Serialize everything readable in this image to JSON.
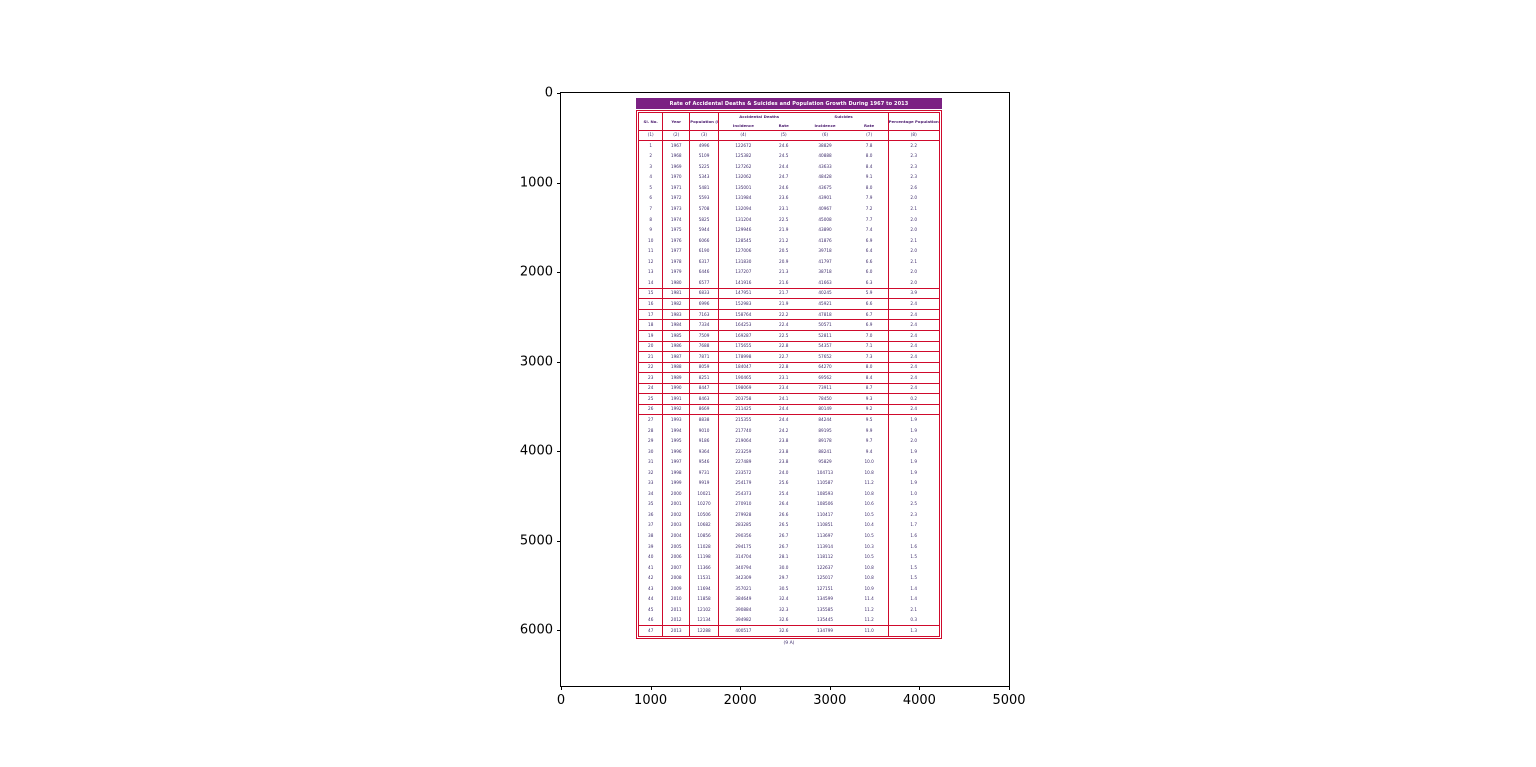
{
  "axes": {
    "x_ticks": [
      "0",
      "1000",
      "2000",
      "3000",
      "4000",
      "5000"
    ],
    "y_ticks": [
      "0",
      "1000",
      "2000",
      "3000",
      "4000",
      "5000",
      "6000"
    ]
  },
  "figure": {
    "caption": "(9 A)"
  },
  "chart_data": {
    "type": "table",
    "title": "Rate of Accidental Deaths & Suicides and Population Growth During 1967 to 2013",
    "headers": {
      "sl": "Sl. No.",
      "year": "Year",
      "pop": "Population (in Lakh)",
      "acc_group": "Accidental Deaths",
      "sui_group": "Suicides",
      "incidence": "Incidence",
      "rate": "Rate",
      "growth": "Percentage Population growth"
    },
    "col_numbers": [
      "(1)",
      "(2)",
      "(3)",
      "(4)",
      "(5)",
      "(6)",
      "(7)",
      "(8)"
    ],
    "rows": [
      [
        "1",
        "1967",
        "4996",
        "122672",
        "24.6",
        "38829",
        "7.8",
        "2.2"
      ],
      [
        "2",
        "1968",
        "5109",
        "125382",
        "24.5",
        "40888",
        "8.0",
        "2.3"
      ],
      [
        "3",
        "1969",
        "5225",
        "127262",
        "24.4",
        "43633",
        "8.4",
        "2.3"
      ],
      [
        "4",
        "1970",
        "5343",
        "132062",
        "24.7",
        "48428",
        "9.1",
        "2.3"
      ],
      [
        "5",
        "1971",
        "5481",
        "135001",
        "24.6",
        "43675",
        "8.0",
        "2.6"
      ],
      [
        "6",
        "1972",
        "5593",
        "131984",
        "23.6",
        "43901",
        "7.9",
        "2.0"
      ],
      [
        "7",
        "1973",
        "5708",
        "132094",
        "23.1",
        "40967",
        "7.2",
        "2.1"
      ],
      [
        "8",
        "1974",
        "5825",
        "131204",
        "22.5",
        "45008",
        "7.7",
        "2.0"
      ],
      [
        "9",
        "1975",
        "5944",
        "129946",
        "21.9",
        "43890",
        "7.4",
        "2.0"
      ],
      [
        "10",
        "1976",
        "6066",
        "128545",
        "21.2",
        "41876",
        "6.9",
        "2.1"
      ],
      [
        "11",
        "1977",
        "6190",
        "127006",
        "20.5",
        "39718",
        "6.4",
        "2.0"
      ],
      [
        "12",
        "1978",
        "6317",
        "131830",
        "20.9",
        "41797",
        "6.6",
        "2.1"
      ],
      [
        "13",
        "1979",
        "6446",
        "137207",
        "21.3",
        "38718",
        "6.0",
        "2.0"
      ],
      [
        "14",
        "1980",
        "6577",
        "141916",
        "21.6",
        "41663",
        "6.3",
        "2.0"
      ],
      [
        "15",
        "1981",
        "6833",
        "147951",
        "21.7",
        "40245",
        "5.9",
        "3.9"
      ],
      [
        "16",
        "1982",
        "6996",
        "152983",
        "21.9",
        "45921",
        "6.6",
        "2.4"
      ],
      [
        "17",
        "1983",
        "7163",
        "158764",
        "22.2",
        "47818",
        "6.7",
        "2.4"
      ],
      [
        "18",
        "1984",
        "7334",
        "164253",
        "22.4",
        "50571",
        "6.9",
        "2.4"
      ],
      [
        "19",
        "1985",
        "7509",
        "169287",
        "22.5",
        "52811",
        "7.0",
        "2.4"
      ],
      [
        "20",
        "1986",
        "7688",
        "175655",
        "22.8",
        "54357",
        "7.1",
        "2.4"
      ],
      [
        "21",
        "1987",
        "7871",
        "178998",
        "22.7",
        "57652",
        "7.3",
        "2.4"
      ],
      [
        "22",
        "1988",
        "8059",
        "184047",
        "22.8",
        "64270",
        "8.0",
        "2.4"
      ],
      [
        "23",
        "1989",
        "8251",
        "190465",
        "23.1",
        "69562",
        "8.4",
        "2.4"
      ],
      [
        "24",
        "1990",
        "8447",
        "198069",
        "23.4",
        "73911",
        "8.7",
        "2.4"
      ],
      [
        "25",
        "1991",
        "8463",
        "203758",
        "24.1",
        "78450",
        "9.3",
        "0.2"
      ],
      [
        "26",
        "1992",
        "8669",
        "211425",
        "24.4",
        "80149",
        "9.2",
        "2.4"
      ],
      [
        "27",
        "1993",
        "8838",
        "215355",
        "24.4",
        "84244",
        "9.5",
        "1.9"
      ],
      [
        "28",
        "1994",
        "9010",
        "217740",
        "24.2",
        "89195",
        "9.9",
        "1.9"
      ],
      [
        "29",
        "1995",
        "9186",
        "219064",
        "23.8",
        "89178",
        "9.7",
        "2.0"
      ],
      [
        "30",
        "1996",
        "9364",
        "223259",
        "23.8",
        "88241",
        "9.4",
        "1.9"
      ],
      [
        "31",
        "1997",
        "9546",
        "227489",
        "23.8",
        "95829",
        "10.0",
        "1.9"
      ],
      [
        "32",
        "1998",
        "9731",
        "233572",
        "24.0",
        "104713",
        "10.8",
        "1.9"
      ],
      [
        "33",
        "1999",
        "9919",
        "254179",
        "25.6",
        "110587",
        "11.2",
        "1.9"
      ],
      [
        "34",
        "2000",
        "10021",
        "254373",
        "25.4",
        "108593",
        "10.8",
        "1.0"
      ],
      [
        "35",
        "2001",
        "10270",
        "270910",
        "26.4",
        "108506",
        "10.6",
        "2.5"
      ],
      [
        "36",
        "2002",
        "10506",
        "279928",
        "26.6",
        "110417",
        "10.5",
        "2.3"
      ],
      [
        "37",
        "2003",
        "10682",
        "283285",
        "26.5",
        "110851",
        "10.4",
        "1.7"
      ],
      [
        "38",
        "2004",
        "10856",
        "290356",
        "26.7",
        "113697",
        "10.5",
        "1.6"
      ],
      [
        "39",
        "2005",
        "11028",
        "294175",
        "26.7",
        "113914",
        "10.3",
        "1.6"
      ],
      [
        "40",
        "2006",
        "11198",
        "314704",
        "28.1",
        "118112",
        "10.5",
        "1.5"
      ],
      [
        "41",
        "2007",
        "11366",
        "340794",
        "30.0",
        "122637",
        "10.8",
        "1.5"
      ],
      [
        "42",
        "2008",
        "11531",
        "342309",
        "29.7",
        "125017",
        "10.8",
        "1.5"
      ],
      [
        "43",
        "2009",
        "11694",
        "357021",
        "30.5",
        "127151",
        "10.9",
        "1.4"
      ],
      [
        "44",
        "2010",
        "11858",
        "384649",
        "32.4",
        "134599",
        "11.4",
        "1.4"
      ],
      [
        "45",
        "2011",
        "12102",
        "390884",
        "32.3",
        "135585",
        "11.2",
        "2.1"
      ],
      [
        "46",
        "2012",
        "12134",
        "394982",
        "32.6",
        "135445",
        "11.2",
        "0.3"
      ],
      [
        "47",
        "2013",
        "12288",
        "400517",
        "32.6",
        "134799",
        "11.0",
        "1.3"
      ]
    ],
    "boxed_row_range": [
      15,
      26
    ],
    "layout": {
      "accent_red": "#cf0a2c",
      "banner_purple": "#7b2183",
      "text_purple": "#3d2b6b",
      "x_range": [
        0,
        5000
      ],
      "y_range": [
        0,
        6600
      ],
      "grid": false
    }
  }
}
